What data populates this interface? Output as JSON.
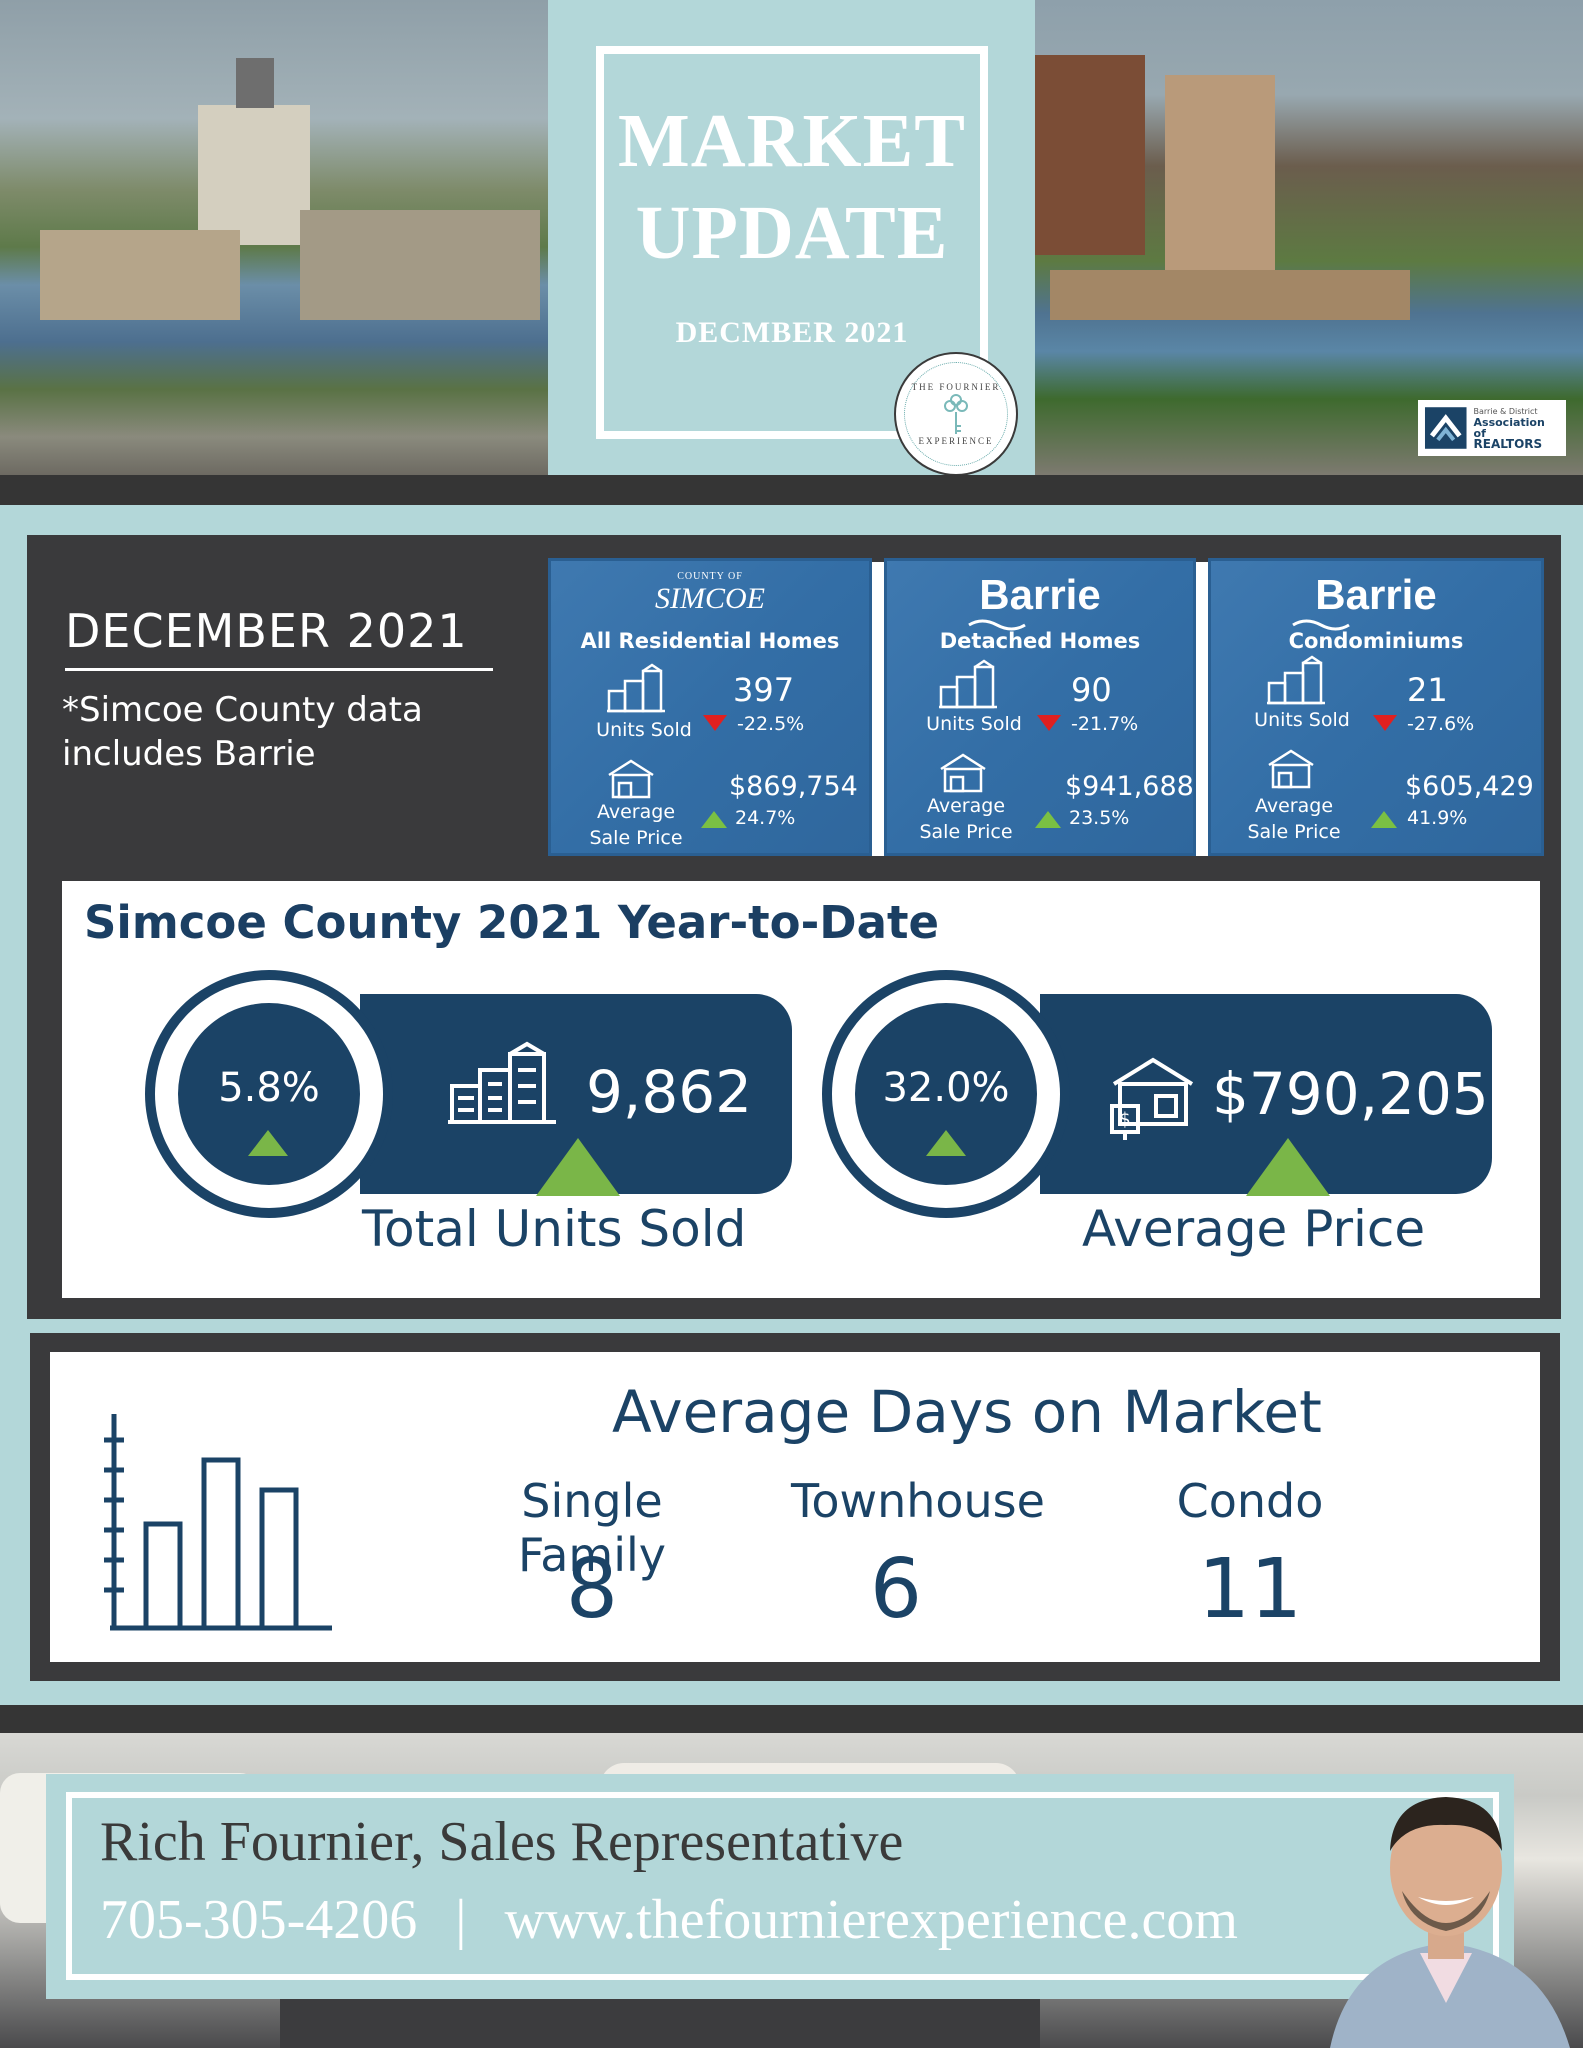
{
  "header": {
    "title_line1": "MARKET",
    "title_line2": "UPDATE",
    "date": "DECMBER 2021",
    "seal_top": "THE FOURNIER",
    "seal_bottom": "EXPERIENCE",
    "realtor_logo": {
      "line1": "Barrie & District",
      "line2": "Association of",
      "line3": "REALTORS"
    }
  },
  "overview": {
    "title": "DECEMBER 2021",
    "note": "*Simcoe County data includes Barrie"
  },
  "cards": [
    {
      "brand_small": "COUNTY OF",
      "brand": "SIMCOE",
      "subtitle": "All Residential Homes",
      "units_label": "Units Sold",
      "units_value": "397",
      "units_change": "-22.5%",
      "units_trend": "down",
      "price_label_1": "Average",
      "price_label_2": "Sale Price",
      "price_value": "$869,754",
      "price_change": "24.7%",
      "price_trend": "up"
    },
    {
      "brand_small": "",
      "brand": "Barrie",
      "subtitle": "Detached Homes",
      "units_label": "Units Sold",
      "units_value": "90",
      "units_change": "-21.7%",
      "units_trend": "down",
      "price_label_1": "Average",
      "price_label_2": "Sale Price",
      "price_value": "$941,688",
      "price_change": "23.5%",
      "price_trend": "up"
    },
    {
      "brand_small": "",
      "brand": "Barrie",
      "subtitle": "Condominiums",
      "units_label": "Units Sold",
      "units_value": "21",
      "units_change": "-27.6%",
      "units_trend": "down",
      "price_label_1": "Average",
      "price_label_2": "Sale Price",
      "price_value": "$605,429",
      "price_change": "41.9%",
      "price_trend": "up"
    }
  ],
  "ytd": {
    "title": "Simcoe County 2021 Year-to-Date",
    "units": {
      "pct": "5.8%",
      "value": "9,862",
      "caption": "Total Units Sold",
      "icon": "buildings-icon"
    },
    "price": {
      "pct": "32.0%",
      "value": "$790,205",
      "caption": "Average Price",
      "icon": "house-icon"
    }
  },
  "days_on_market": {
    "title": "Average Days on Market",
    "items": [
      {
        "label": "Single Family",
        "value": "8"
      },
      {
        "label": "Townhouse",
        "value": "6"
      },
      {
        "label": "Condo",
        "value": "11"
      }
    ]
  },
  "footer": {
    "name": "Rich Fournier, Sales Representative",
    "phone": "705-305-4206",
    "separator": "|",
    "website": "www.thefournierexperience.com"
  },
  "colors": {
    "navy": "#1b4366",
    "aqua": "#b3d7d9",
    "charcoal": "#3a3a3c",
    "green": "#7ab648",
    "red": "#e02020",
    "card_blue": "#336ea6"
  }
}
